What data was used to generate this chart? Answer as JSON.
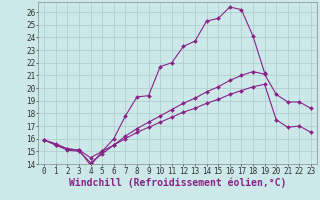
{
  "title": "",
  "xlabel": "Windchill (Refroidissement éolien,°C)",
  "ylabel": "",
  "bg_color": "#cce8e8",
  "line_color": "#882288",
  "xlim": [
    -0.5,
    23.5
  ],
  "ylim": [
    14,
    26.8
  ],
  "yticks": [
    14,
    15,
    16,
    17,
    18,
    19,
    20,
    21,
    22,
    23,
    24,
    25,
    26
  ],
  "xticks": [
    0,
    1,
    2,
    3,
    4,
    5,
    6,
    7,
    8,
    9,
    10,
    11,
    12,
    13,
    14,
    15,
    16,
    17,
    18,
    19,
    20,
    21,
    22,
    23
  ],
  "series": [
    {
      "x": [
        0,
        1,
        2,
        3,
        4,
        5,
        6,
        7,
        8,
        9,
        10,
        11,
        12,
        13,
        14,
        15,
        16,
        17,
        18,
        19
      ],
      "y": [
        15.9,
        15.6,
        15.2,
        15.1,
        13.9,
        15.0,
        16.0,
        17.8,
        19.3,
        19.4,
        21.7,
        22.0,
        23.3,
        23.7,
        25.3,
        25.5,
        26.4,
        26.2,
        24.1,
        21.2
      ]
    },
    {
      "x": [
        0,
        1,
        2,
        3,
        4,
        5,
        6,
        7,
        8,
        9,
        10,
        11,
        12,
        13,
        14,
        15,
        16,
        17,
        18,
        19,
        20,
        21,
        22,
        23
      ],
      "y": [
        15.9,
        15.5,
        15.1,
        15.0,
        14.1,
        14.8,
        15.5,
        16.2,
        16.8,
        17.3,
        17.8,
        18.3,
        18.8,
        19.2,
        19.7,
        20.1,
        20.6,
        21.0,
        21.3,
        21.1,
        19.5,
        18.9,
        18.9,
        18.4
      ]
    },
    {
      "x": [
        0,
        1,
        2,
        3,
        4,
        5,
        6,
        7,
        8,
        9,
        10,
        11,
        12,
        13,
        14,
        15,
        16,
        17,
        18,
        19,
        20,
        21,
        22,
        23
      ],
      "y": [
        15.9,
        15.5,
        15.2,
        15.1,
        14.5,
        15.0,
        15.5,
        16.0,
        16.5,
        16.9,
        17.3,
        17.7,
        18.1,
        18.4,
        18.8,
        19.1,
        19.5,
        19.8,
        20.1,
        20.3,
        17.5,
        16.9,
        17.0,
        16.5
      ]
    }
  ],
  "grid_color": "#aacccc",
  "tick_fontsize": 5.5,
  "xlabel_fontsize": 7
}
